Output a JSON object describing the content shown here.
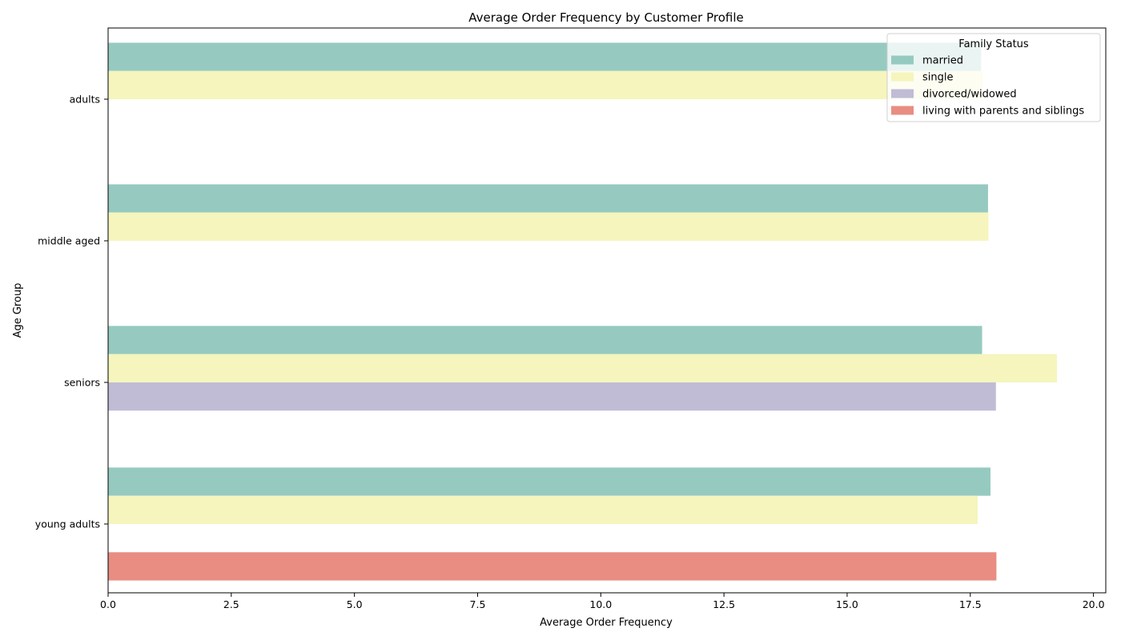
{
  "chart_data": {
    "type": "bar",
    "orientation": "horizontal",
    "title": "Average Order Frequency by Customer Profile",
    "xlabel": "Average Order Frequency",
    "ylabel": "Age Group",
    "categories": [
      "adults",
      "middle aged",
      "seniors",
      "young adults"
    ],
    "xlim": [
      0,
      20.25
    ],
    "x_ticks": [
      0.0,
      2.5,
      5.0,
      7.5,
      10.0,
      12.5,
      15.0,
      17.5,
      20.0
    ],
    "x_tick_labels": [
      "0.0",
      "2.5",
      "5.0",
      "7.5",
      "10.0",
      "12.5",
      "15.0",
      "17.5",
      "20.0"
    ],
    "legend": {
      "title": "Family Status",
      "position": "top-right"
    },
    "grid": false,
    "series": [
      {
        "name": "married",
        "color": "#96cac0",
        "values": [
          17.72,
          17.86,
          17.74,
          17.91
        ]
      },
      {
        "name": "single",
        "color": "#f5f5bd",
        "values": [
          17.76,
          17.87,
          19.26,
          17.65
        ]
      },
      {
        "name": "divorced/widowed",
        "color": "#c0bcd6",
        "values": [
          null,
          null,
          18.02,
          null
        ]
      },
      {
        "name": "living with parents and siblings",
        "color": "#e98d82",
        "values": [
          null,
          null,
          null,
          18.03
        ]
      }
    ]
  }
}
